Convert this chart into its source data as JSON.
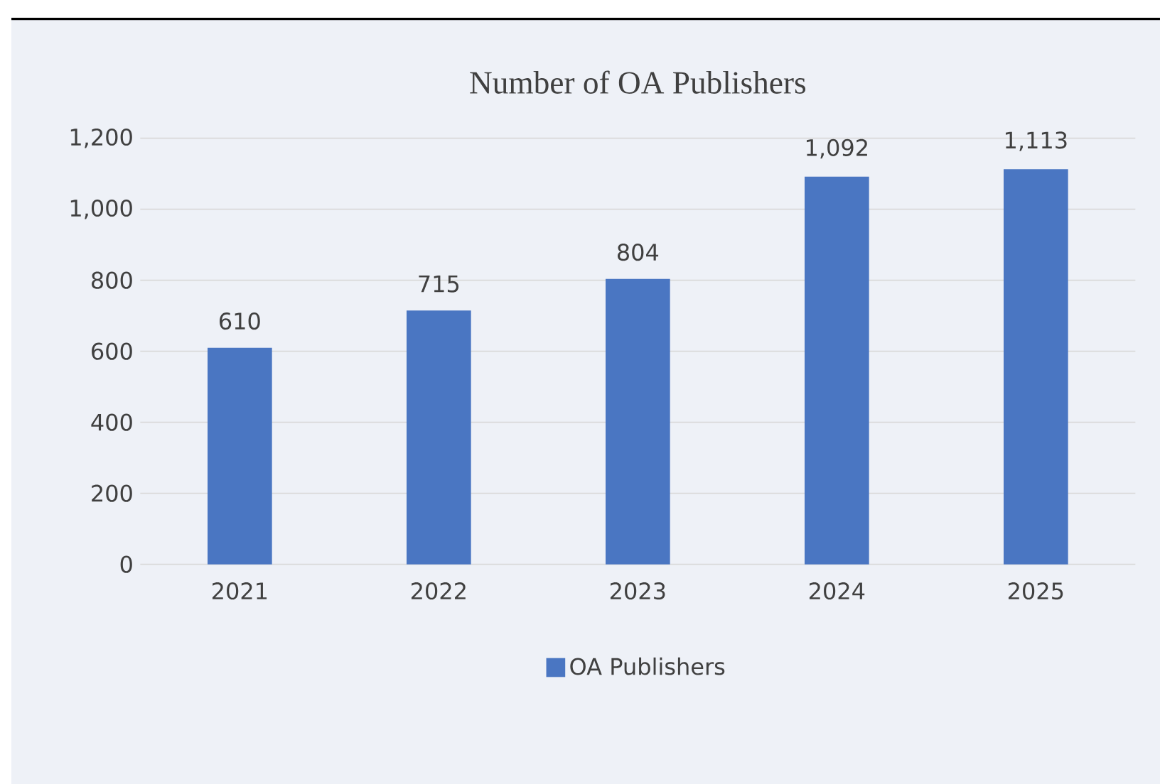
{
  "chart_data": {
    "type": "bar",
    "title": "Number of OA Publishers",
    "categories": [
      "2021",
      "2022",
      "2023",
      "2024",
      "2025"
    ],
    "series": [
      {
        "name": "OA Publishers",
        "color": "#4a76c2",
        "values": [
          610,
          715,
          804,
          1092,
          1113
        ],
        "value_labels": [
          "610",
          "715",
          "804",
          "1,092",
          "1,113"
        ]
      }
    ],
    "ylim": [
      0,
      1200
    ],
    "yticks": [
      0,
      200,
      400,
      600,
      800,
      {
        "value": 1000,
        "label": "1,000"
      },
      {
        "value": 1200,
        "label": "1,200"
      }
    ],
    "grid": "y",
    "legend": "bottom"
  }
}
